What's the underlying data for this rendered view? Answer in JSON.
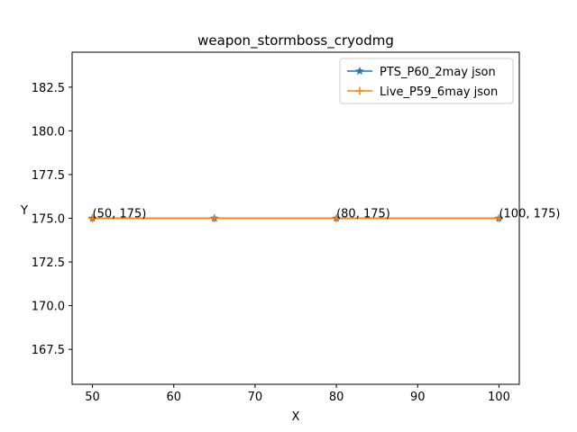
{
  "chart_data": {
    "type": "line",
    "title": "weapon_stormboss_cryodmg",
    "xlabel": "X",
    "ylabel": "Y",
    "xlim": [
      47.5,
      102.5
    ],
    "ylim": [
      165.5,
      184.5
    ],
    "xticks": [
      50,
      60,
      70,
      80,
      90,
      100
    ],
    "yticks": [
      167.5,
      170.0,
      172.5,
      175.0,
      177.5,
      180.0,
      182.5
    ],
    "ytick_labels": [
      "167.5",
      "170.0",
      "172.5",
      "175.0",
      "177.5",
      "180.0",
      "182.5"
    ],
    "grid": false,
    "legend_position": "top-right",
    "series": [
      {
        "name": "PTS_P60_2may json",
        "color": "#1f77b4",
        "marker": "star",
        "x": [
          50,
          65,
          80,
          100
        ],
        "y": [
          175,
          175,
          175,
          175
        ]
      },
      {
        "name": "Live_P59_6may json",
        "color": "#ff7f0e",
        "marker": "plus",
        "x": [
          50,
          65,
          80,
          100
        ],
        "y": [
          175,
          175,
          175,
          175
        ]
      }
    ],
    "annotations": [
      {
        "text": "(50, 175)",
        "x": 50,
        "y": 175
      },
      {
        "text": "(80, 175)",
        "x": 80,
        "y": 175
      },
      {
        "text": "(100, 175)",
        "x": 100,
        "y": 175
      }
    ]
  }
}
